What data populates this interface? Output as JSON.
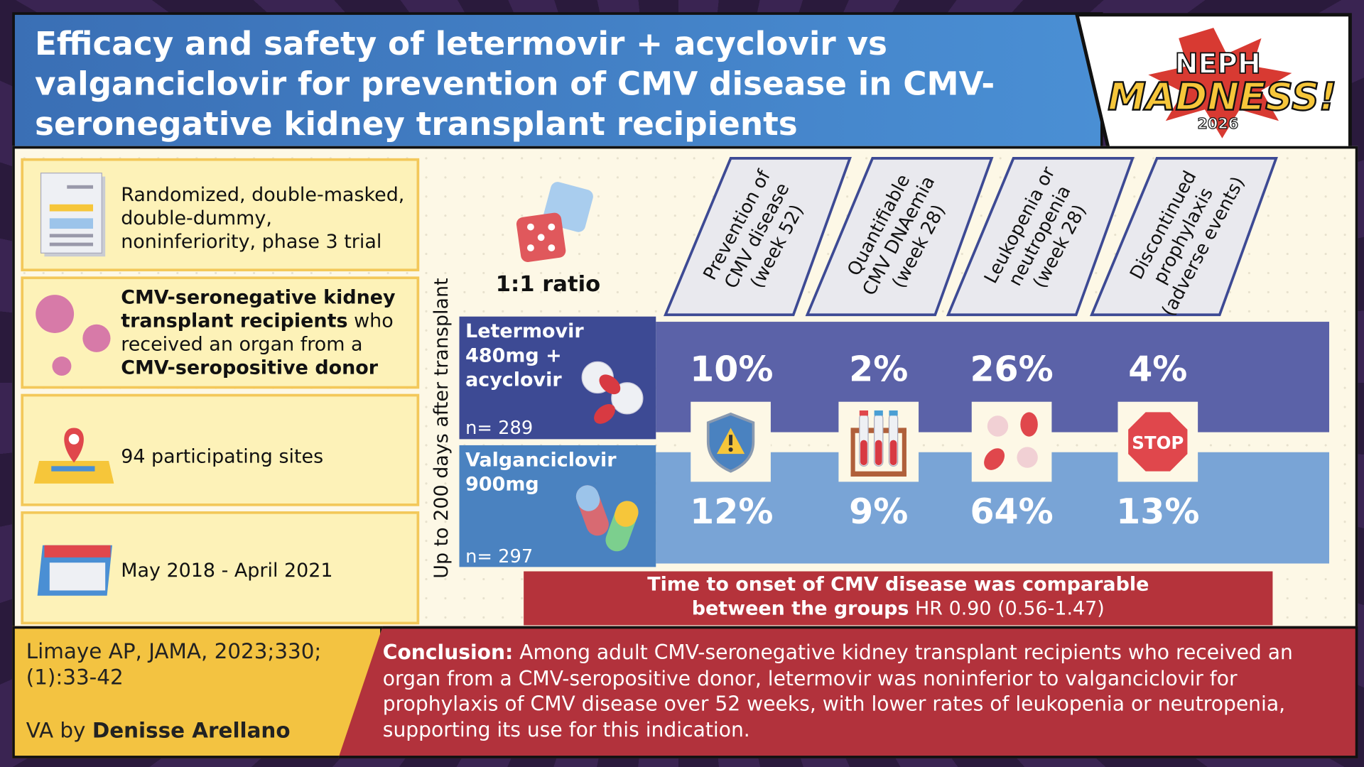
{
  "header": {
    "title": "Efficacy and safety of letermovir + acyclovir vs valganciclovir for prevention of CMV disease in CMV-seronegative kidney transplant recipients"
  },
  "logo": {
    "line1": "NEPH",
    "line2": "MADNESS!",
    "year": "2026"
  },
  "study": {
    "design": "Randomized, double-masked, double-dummy, noninferiority, phase 3 trial",
    "population": [
      "CMV-seronegative kidney transplant recipients",
      "who received an organ from a",
      "CMV-seropositive donor"
    ],
    "sites": "94 participating sites",
    "period": "May 2018 - April 2021"
  },
  "timeline": "Up to 200 days after transplant",
  "ratio": "1:1 ratio",
  "outcomes": [
    [
      "Prevention of",
      "CMV disease",
      "(week 52)"
    ],
    [
      "Quantifiable",
      "CMV DNAemia",
      "(week 28)"
    ],
    [
      "Leukopenia or",
      "neutropenia",
      "(week 28)"
    ],
    [
      "Discontinued",
      "prophylaxis",
      "(adverse events)"
    ]
  ],
  "arms": [
    {
      "name": [
        "Letermovir",
        "480mg +",
        "acyclovir"
      ],
      "n": "n= 289",
      "results": [
        "10%",
        "2%",
        "26%",
        "4%"
      ]
    },
    {
      "name": [
        "Valganciclovir",
        "900mg"
      ],
      "n": "n= 297",
      "results": [
        "12%",
        "9%",
        "64%",
        "13%"
      ]
    }
  ],
  "stop_sign": "STOP",
  "finding": {
    "statement": [
      "Time to onset of CMV disease was comparable",
      "between the groups"
    ],
    "hr": "HR 0.90 (0.56-1.47)"
  },
  "citation": "Limaye AP, JAMA, 2023;330;(1):33-42",
  "credit": {
    "prefix": "VA by",
    "author": "Denisse Arellano"
  },
  "conclusion": {
    "label": "Conclusion:",
    "text": "Among adult CMV-seronegative kidney transplant recipients who received an organ from a CMV-seropositive donor, letermovir was noninferior to valganciclovir for prophylaxis of CMV disease over 52 weeks, with lower rates of leukopenia or neutropenia, supporting its use for this indication."
  }
}
